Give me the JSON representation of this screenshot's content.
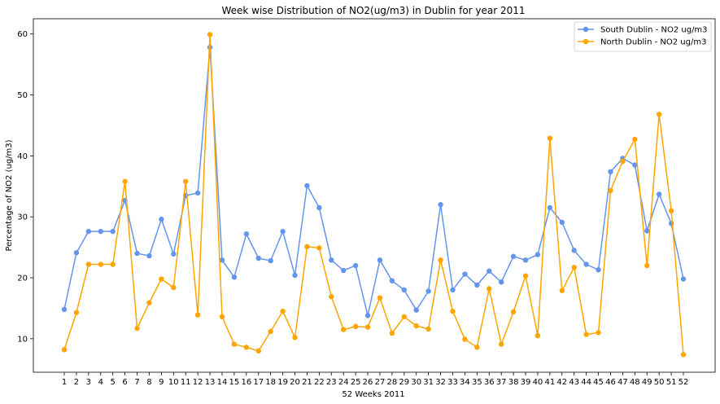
{
  "chart_data": {
    "type": "line",
    "title": "Week wise Distribution of NO2(ug/m3) in Dublin for year 2011",
    "xlabel": "52 Weeks 2011",
    "ylabel": "Percentage of NO2 (ug/m3)",
    "categories": [
      "1",
      "2",
      "3",
      "4",
      "5",
      "6",
      "7",
      "8",
      "9",
      "10",
      "11",
      "12",
      "13",
      "14",
      "15",
      "16",
      "17",
      "18",
      "19",
      "20",
      "21",
      "22",
      "23",
      "24",
      "25",
      "26",
      "27",
      "28",
      "29",
      "30",
      "31",
      "32",
      "33",
      "34",
      "35",
      "36",
      "37",
      "38",
      "39",
      "40",
      "41",
      "42",
      "43",
      "44",
      "45",
      "46",
      "47",
      "48",
      "49",
      "50",
      "51",
      "52"
    ],
    "ylim": [
      4.5,
      62.5
    ],
    "yticks": [
      10,
      20,
      30,
      40,
      50,
      60
    ],
    "legend_position": "top-right",
    "grid": false,
    "series": [
      {
        "name": "South Dublin - NO2 ug/m3",
        "color": "#6495ED",
        "values": [
          14.8,
          24.1,
          27.6,
          27.6,
          27.6,
          32.7,
          24.0,
          23.6,
          29.6,
          23.9,
          33.5,
          33.9,
          57.8,
          22.9,
          20.1,
          27.2,
          23.2,
          22.8,
          27.6,
          20.4,
          35.1,
          31.5,
          22.9,
          21.2,
          22.0,
          13.8,
          22.9,
          19.5,
          18.0,
          14.7,
          17.8,
          32.0,
          18.0,
          20.6,
          18.8,
          21.1,
          19.3,
          23.5,
          22.9,
          23.8,
          31.5,
          29.1,
          24.5,
          22.2,
          21.3,
          37.4,
          39.6,
          38.5,
          27.7,
          33.7,
          28.9,
          19.8
        ]
      },
      {
        "name": "North Dublin - NO2 ug/m3",
        "color": "#FFA500",
        "values": [
          8.2,
          14.3,
          22.2,
          22.2,
          22.2,
          35.8,
          11.7,
          15.9,
          19.8,
          18.4,
          35.8,
          13.9,
          59.9,
          13.6,
          9.1,
          8.6,
          8.0,
          11.2,
          14.5,
          10.2,
          25.1,
          24.9,
          16.9,
          11.5,
          12.0,
          11.9,
          16.7,
          10.9,
          13.6,
          12.1,
          11.6,
          22.9,
          14.5,
          9.9,
          8.6,
          18.2,
          9.1,
          14.4,
          20.3,
          10.5,
          42.9,
          17.9,
          21.7,
          10.7,
          11.0,
          34.3,
          39.1,
          42.7,
          22.0,
          46.8,
          31.0,
          7.4
        ]
      }
    ]
  }
}
